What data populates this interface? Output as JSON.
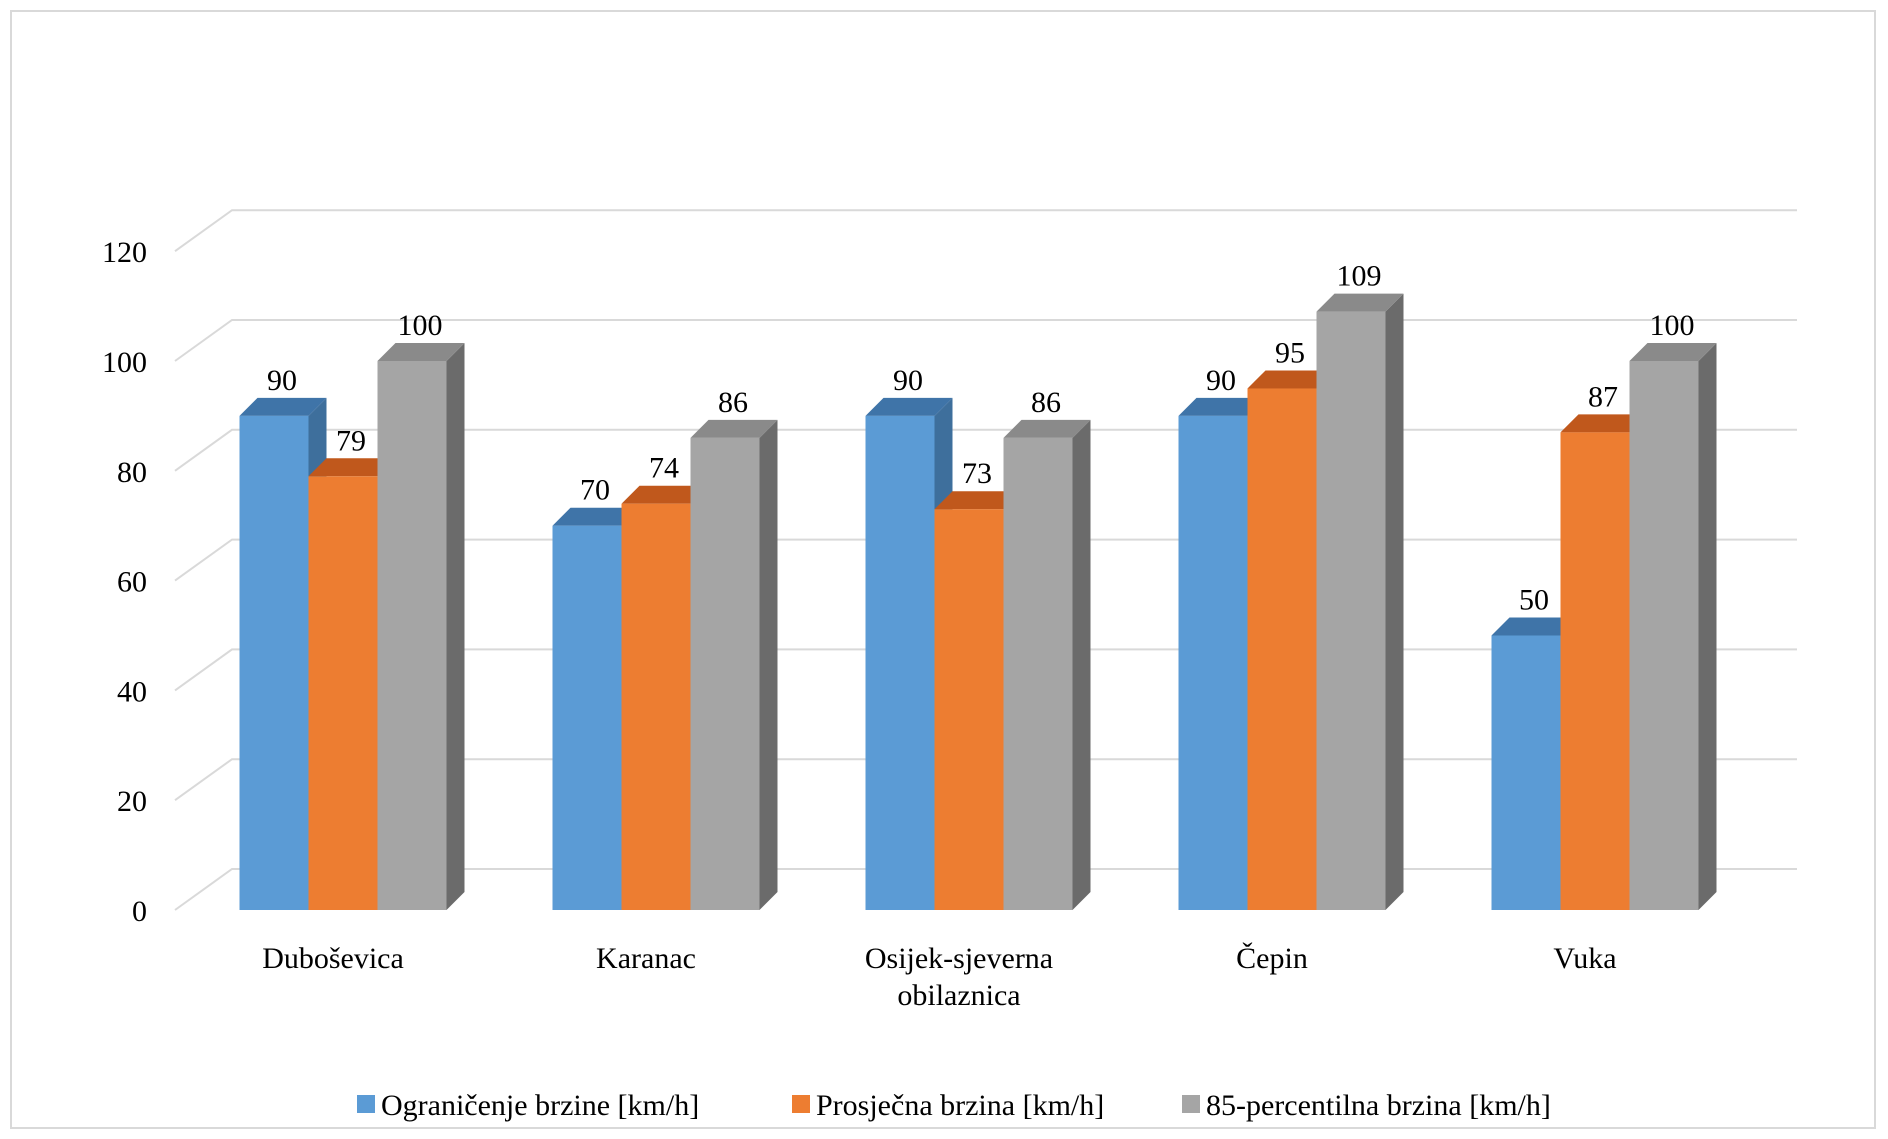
{
  "chart_data": {
    "type": "bar",
    "categories": [
      "Duboševica",
      "Karanac",
      "Osijek-sjeverna obilaznica",
      "Čepin",
      "Vuka"
    ],
    "series": [
      {
        "name": "Ograničenje brzine [km/h]",
        "values": [
          90,
          70,
          90,
          90,
          50
        ],
        "color": "#5b9bd5",
        "side_color": "#3e6f9c",
        "top_color": "#3f74a8"
      },
      {
        "name": "Prosječna brzina [km/h]",
        "values": [
          79,
          74,
          73,
          95,
          87
        ],
        "color": "#ed7d31",
        "side_color": "#b85e22",
        "top_color": "#c0581c"
      },
      {
        "name": "85-percentilna brzina [km/h]",
        "values": [
          100,
          86,
          86,
          109,
          100
        ],
        "color": "#a5a5a5",
        "side_color": "#6b6b6b",
        "top_color": "#8a8a8a"
      }
    ],
    "ylim": [
      0,
      120
    ],
    "yticks": [
      "0",
      "20",
      "40",
      "60",
      "80",
      "100",
      "120"
    ],
    "xlabel": "",
    "ylabel": "",
    "grid": true,
    "legend": "bottom",
    "style": "3d-clustered-column"
  }
}
